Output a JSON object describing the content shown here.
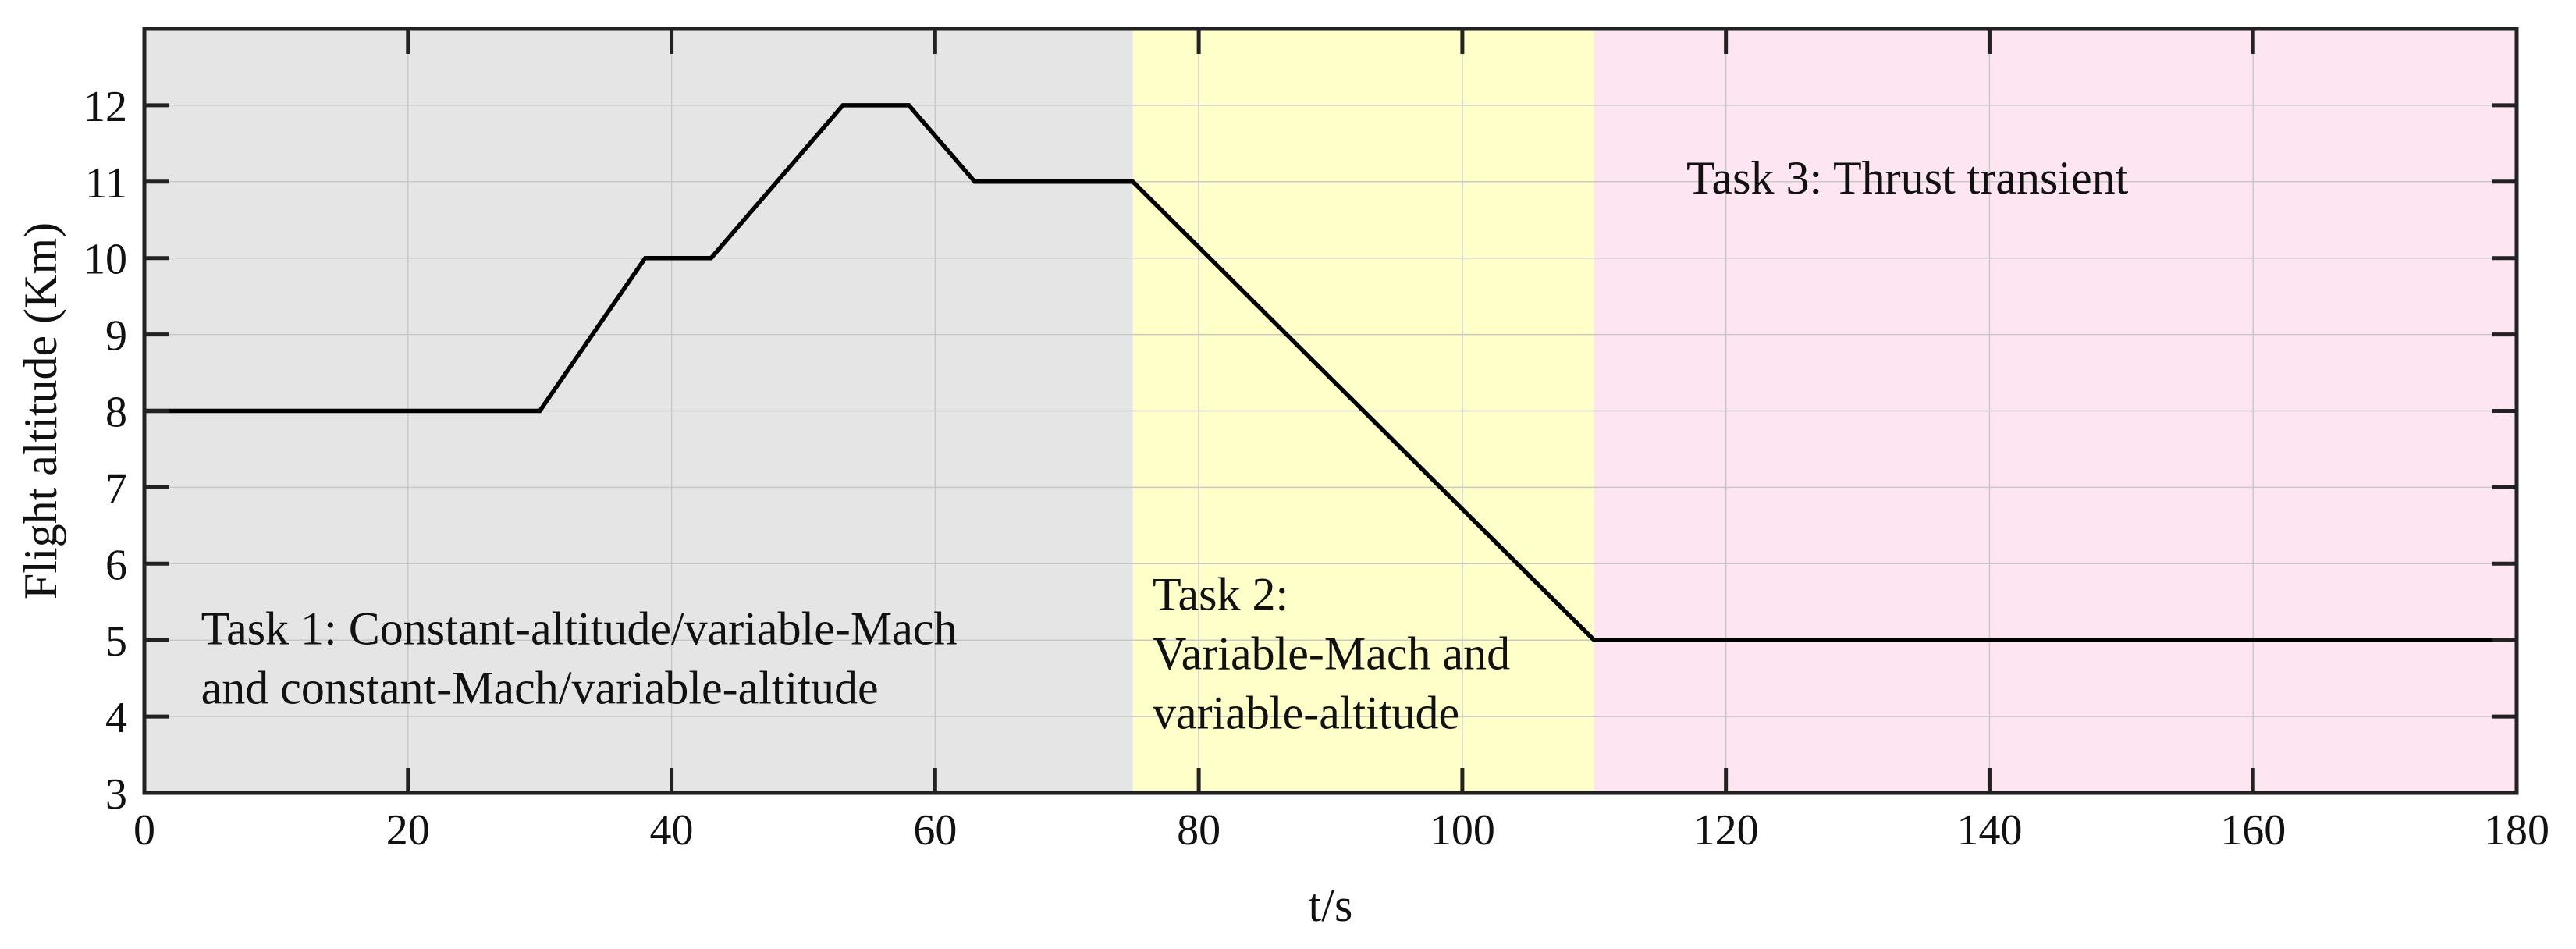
{
  "chart_data": {
    "type": "line",
    "title": "",
    "xlabel": "t/s",
    "ylabel": "Flight altitude (Km)",
    "xlim": [
      0,
      180
    ],
    "ylim": [
      3,
      13
    ],
    "xticks": [
      0,
      20,
      40,
      60,
      80,
      100,
      120,
      140,
      160,
      180
    ],
    "yticks": [
      3,
      4,
      5,
      6,
      7,
      8,
      9,
      10,
      11,
      12
    ],
    "grid": true,
    "series": [
      {
        "x": [
          0,
          30,
          38,
          43,
          53,
          58,
          63,
          75,
          110,
          180
        ],
        "y": [
          8,
          8,
          10,
          10,
          12,
          12,
          11,
          11,
          5,
          5
        ],
        "color": "#000000"
      }
    ],
    "regions": [
      {
        "x_start": 0,
        "x_end": 75,
        "color": "#e5e5e5",
        "label_lines": [
          "Task 1: Constant-altitude/variable-Mach",
          "and constant-Mach/variable-altitude"
        ],
        "label_x": 4.3,
        "label_y": 5.15
      },
      {
        "x_start": 75,
        "x_end": 110,
        "color": "#ffffc9",
        "label_lines": [
          "Task 2:",
          "Variable-Mach and",
          "variable-altitude"
        ],
        "label_x": 76.5,
        "label_y": 5.6
      },
      {
        "x_start": 110,
        "x_end": 180,
        "color": "#fde5f1",
        "label_lines": [
          "Task 3: Thrust transient"
        ],
        "label_x": 117,
        "label_y": 11.05
      }
    ]
  }
}
